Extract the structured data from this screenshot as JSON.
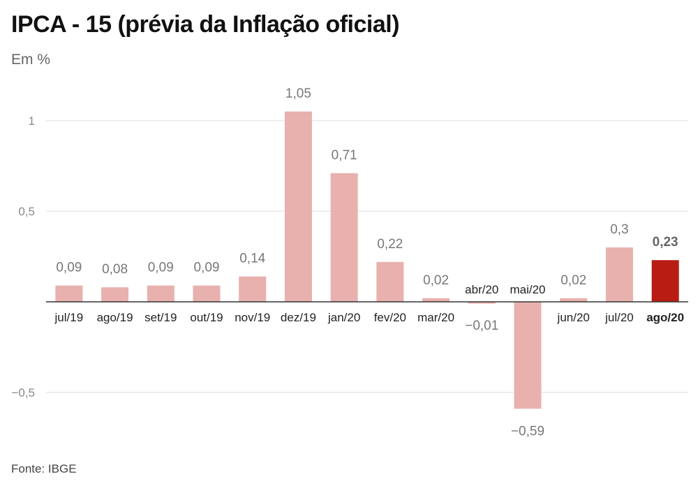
{
  "title": "IPCA - 15 (prévia da Inflação oficial)",
  "subtitle": "Em %",
  "source": "Fonte: IBGE",
  "colors": {
    "bar": "#e8b1ad",
    "highlight": "#b81c13"
  },
  "chart_data": {
    "type": "bar",
    "title": "IPCA - 15 (prévia da Inflação oficial)",
    "ylabel": "Em %",
    "xlabel": "",
    "categories": [
      "jul/19",
      "ago/19",
      "set/19",
      "out/19",
      "nov/19",
      "dez/19",
      "jan/20",
      "fev/20",
      "mar/20",
      "abr/20",
      "mai/20",
      "jun/20",
      "jul/20",
      "ago/20"
    ],
    "values": [
      0.09,
      0.08,
      0.09,
      0.09,
      0.14,
      1.05,
      0.71,
      0.22,
      0.02,
      -0.01,
      -0.59,
      0.02,
      0.3,
      0.23
    ],
    "value_labels": [
      "0,09",
      "0,08",
      "0,09",
      "0,09",
      "0,14",
      "1,05",
      "0,71",
      "0,22",
      "0,02",
      "−0,01",
      "−0,59",
      "0,02",
      "0,3",
      "0,23"
    ],
    "yticks": [
      -0.5,
      0.5,
      1
    ],
    "ytick_labels": [
      "−0,5",
      "0,5",
      "1"
    ],
    "ylim": [
      -0.75,
      1.15
    ],
    "highlight_index": 13,
    "grid": true,
    "legend": "none"
  }
}
